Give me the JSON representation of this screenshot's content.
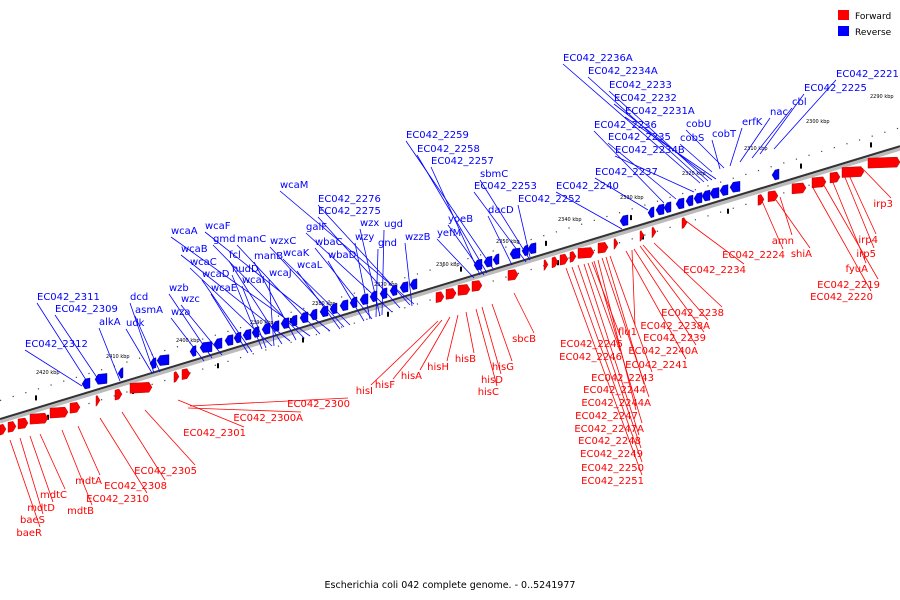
{
  "caption": "Escherichia coli 042 complete genome. - 0..5241977",
  "legend": {
    "forward": {
      "label": "Forward",
      "color": "#ff0000"
    },
    "reverse": {
      "label": "Reverse",
      "color": "#0000ff"
    }
  },
  "ticks": [
    "2290 kbp",
    "2300 kbp",
    "2310 kbp",
    "2320 kbp",
    "2330 kbp",
    "2340 kbp",
    "2350 kbp",
    "2360 kbp",
    "2370 kbp",
    "2380 kbp",
    "2390 kbp",
    "2400 kbp",
    "2410 kbp",
    "2420 kbp"
  ],
  "reverse_labels": [
    "EC042_2236A",
    "EC042_2234A",
    "EC042_2233",
    "EC042_2232",
    "EC042_2231A",
    "EC042_2236",
    "EC042_2235",
    "EC042_2234B",
    "EC042_2237",
    "EC042_2240",
    "EC042_2221",
    "EC042_2225",
    "cbl",
    "nac",
    "erfK",
    "cobT",
    "cobS",
    "cobU",
    "EC042_2259",
    "EC042_2258",
    "EC042_2257",
    "sbmC",
    "EC042_2253",
    "EC042_2252",
    "dacD",
    "yoeB",
    "yefM",
    "wcaM",
    "EC042_2276",
    "EC042_2275",
    "galF",
    "wzx",
    "ugd",
    "wbaC",
    "wzy",
    "gnd",
    "wzzB",
    "wbaD",
    "wcaF",
    "wcaA",
    "wzxC",
    "manC",
    "gmd",
    "wcaB",
    "wcaK",
    "fcl",
    "manB",
    "wcaC",
    "nudD",
    "wcaL",
    "wcaI",
    "wcaJ",
    "wcaD",
    "wcaE",
    "wzb",
    "wzc",
    "wza",
    "dcd",
    "asmA",
    "udk",
    "alkA",
    "EC042_2311",
    "EC042_2309",
    "EC042_2312"
  ],
  "forward_labels": [
    "irp3",
    "irp4",
    "irp5",
    "fyuA",
    "EC042_2219",
    "EC042_2220",
    "amn",
    "shiA",
    "EC042_2224",
    "EC042_2234",
    "EC042_2238",
    "EC042_2238A",
    "flu1",
    "EC042_2239",
    "EC042_2240A",
    "EC042_2241",
    "EC042_2245",
    "EC042_2246",
    "EC042_2243",
    "EC042_2244",
    "EC042_2244A",
    "EC042_2247",
    "EC042_2247A",
    "EC042_2248",
    "EC042_2249",
    "EC042_2250",
    "EC042_2251",
    "sbcB",
    "hisG",
    "hisD",
    "hisC",
    "hisB",
    "hisH",
    "hisA",
    "hisF",
    "hisI",
    "EC042_2300",
    "EC042_2300A",
    "EC042_2301",
    "EC042_2305",
    "EC042_2308",
    "EC042_2310",
    "mdtA",
    "mdtB",
    "mdtC",
    "mdtD",
    "baeS",
    "baeR"
  ]
}
